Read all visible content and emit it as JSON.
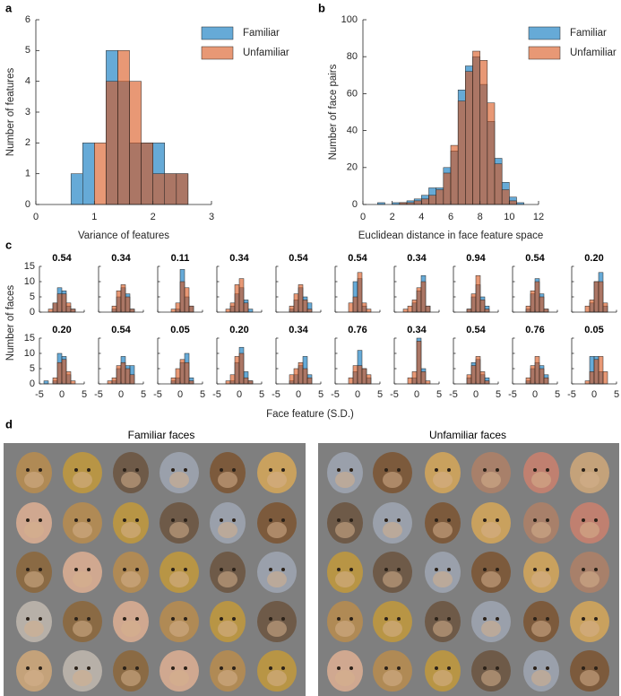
{
  "chart_data": [
    {
      "type": "histogram",
      "panel": "a",
      "x_label": "Variance of features",
      "y_label": "Number of features",
      "bins": [
        0.6,
        0.8,
        1.0,
        1.2,
        1.4,
        1.6,
        1.8,
        2.0,
        2.2,
        2.4,
        2.6
      ],
      "series": [
        {
          "name": "Familiar",
          "color": "#0072bd",
          "values": [
            1,
            2,
            0,
            5,
            4,
            2,
            2,
            2,
            1,
            1
          ]
        },
        {
          "name": "Unfamiliar",
          "color": "#d95319",
          "values": [
            0,
            0,
            2,
            4,
            5,
            4,
            2,
            1,
            1,
            1
          ]
        }
      ],
      "xlim": [
        0,
        3
      ],
      "xticks": [
        0,
        1,
        2,
        3
      ],
      "ylim": [
        0,
        6
      ],
      "yticks": [
        0,
        1,
        2,
        3,
        4,
        5,
        6
      ],
      "legend": "upper right"
    },
    {
      "type": "histogram",
      "panel": "b",
      "x_label": "Euclidean distance in face feature space",
      "y_label": "Number of face pairs",
      "bins": [
        1.0,
        1.5,
        2.0,
        2.5,
        3.0,
        3.5,
        4.0,
        4.5,
        5.0,
        5.5,
        6.0,
        6.5,
        7.0,
        7.5,
        8.0,
        8.5,
        9.0,
        9.5,
        10.0,
        10.5,
        11.0
      ],
      "series": [
        {
          "name": "Familiar",
          "color": "#0072bd",
          "values": [
            1,
            0,
            1,
            1,
            2,
            3,
            5,
            9,
            9,
            20,
            29,
            62,
            75,
            80,
            65,
            45,
            25,
            12,
            4,
            1
          ]
        },
        {
          "name": "Unfamiliar",
          "color": "#d95319",
          "values": [
            0,
            0,
            0,
            1,
            1,
            2,
            3,
            5,
            8,
            17,
            32,
            56,
            72,
            83,
            78,
            55,
            22,
            8,
            2,
            0
          ]
        }
      ],
      "xlim": [
        0,
        12
      ],
      "xticks": [
        0,
        2,
        4,
        6,
        8,
        10,
        12
      ],
      "ylim": [
        0,
        100
      ],
      "yticks": [
        0,
        20,
        40,
        60,
        80,
        100
      ],
      "legend": "upper right"
    },
    {
      "type": "histogram-grid",
      "panel": "c",
      "x_label": "Face feature (S.D.)",
      "y_label": "Number of faces",
      "columns": 10,
      "bins": [
        -4,
        -3,
        -2,
        -1,
        0,
        1,
        2,
        3,
        4
      ],
      "xlim": [
        -5,
        5
      ],
      "xticks": [
        -5,
        0,
        5
      ],
      "ylim": [
        0,
        15
      ],
      "yticks": [
        0,
        5,
        10,
        15
      ],
      "charts": [
        {
          "title": "0.54",
          "series": [
            {
              "color": "#0072bd",
              "values": [
                0,
                0,
                3,
                8,
                7,
                2,
                1,
                0
              ]
            },
            {
              "color": "#d95319",
              "values": [
                0,
                1,
                3,
                6,
                6,
                3,
                1,
                0
              ]
            }
          ]
        },
        {
          "title": "0.34",
          "series": [
            {
              "color": "#0072bd",
              "values": [
                0,
                0,
                1,
                5,
                8,
                6,
                1,
                0
              ]
            },
            {
              "color": "#d95319",
              "values": [
                0,
                0,
                2,
                7,
                9,
                5,
                1,
                0
              ]
            }
          ]
        },
        {
          "title": "0.11",
          "series": [
            {
              "color": "#0072bd",
              "values": [
                0,
                0,
                0,
                1,
                14,
                5,
                2,
                0
              ]
            },
            {
              "color": "#d95319",
              "values": [
                0,
                0,
                1,
                3,
                10,
                8,
                2,
                0
              ]
            }
          ]
        },
        {
          "title": "0.34",
          "series": [
            {
              "color": "#0072bd",
              "values": [
                0,
                0,
                2,
                6,
                8,
                4,
                1,
                0
              ]
            },
            {
              "color": "#d95319",
              "values": [
                0,
                1,
                3,
                9,
                11,
                3,
                0,
                0
              ]
            }
          ]
        },
        {
          "title": "0.54",
          "series": [
            {
              "color": "#0072bd",
              "values": [
                0,
                0,
                1,
                4,
                8,
                5,
                3,
                0
              ]
            },
            {
              "color": "#d95319",
              "values": [
                0,
                0,
                2,
                6,
                9,
                4,
                1,
                0
              ]
            }
          ]
        },
        {
          "title": "0.54",
          "series": [
            {
              "color": "#0072bd",
              "values": [
                0,
                0,
                0,
                10,
                11,
                2,
                0,
                0
              ]
            },
            {
              "color": "#d95319",
              "values": [
                0,
                0,
                3,
                5,
                13,
                3,
                1,
                0
              ]
            }
          ]
        },
        {
          "title": "0.34",
          "series": [
            {
              "color": "#0072bd",
              "values": [
                0,
                0,
                0,
                3,
                7,
                12,
                2,
                0
              ]
            },
            {
              "color": "#d95319",
              "values": [
                0,
                1,
                2,
                4,
                8,
                10,
                2,
                0
              ]
            }
          ]
        },
        {
          "title": "0.94",
          "series": [
            {
              "color": "#0072bd",
              "values": [
                0,
                0,
                1,
                5,
                9,
                5,
                2,
                0
              ]
            },
            {
              "color": "#d95319",
              "values": [
                0,
                0,
                1,
                6,
                12,
                4,
                1,
                0
              ]
            }
          ]
        },
        {
          "title": "0.54",
          "series": [
            {
              "color": "#0072bd",
              "values": [
                0,
                0,
                1,
                6,
                11,
                6,
                1,
                0
              ]
            },
            {
              "color": "#d95319",
              "values": [
                0,
                0,
                2,
                7,
                10,
                5,
                1,
                0
              ]
            }
          ]
        },
        {
          "title": "0.20",
          "series": [
            {
              "color": "#0072bd",
              "values": [
                0,
                0,
                0,
                3,
                10,
                13,
                2,
                0
              ]
            },
            {
              "color": "#d95319",
              "values": [
                0,
                0,
                2,
                4,
                10,
                10,
                3,
                0
              ]
            }
          ]
        },
        {
          "title": "0.20",
          "series": [
            {
              "color": "#0072bd",
              "values": [
                1,
                0,
                1,
                10,
                9,
                3,
                0,
                0
              ]
            },
            {
              "color": "#d95319",
              "values": [
                0,
                0,
                2,
                7,
                8,
                4,
                1,
                0
              ]
            }
          ]
        },
        {
          "title": "0.54",
          "series": [
            {
              "color": "#0072bd",
              "values": [
                0,
                0,
                1,
                5,
                9,
                6,
                6,
                0
              ]
            },
            {
              "color": "#d95319",
              "values": [
                0,
                1,
                2,
                6,
                7,
                5,
                3,
                0
              ]
            }
          ]
        },
        {
          "title": "0.05",
          "series": [
            {
              "color": "#0072bd",
              "values": [
                0,
                0,
                1,
                2,
                7,
                10,
                2,
                0
              ]
            },
            {
              "color": "#d95319",
              "values": [
                0,
                0,
                2,
                5,
                8,
                7,
                1,
                0
              ]
            }
          ]
        },
        {
          "title": "0.20",
          "series": [
            {
              "color": "#0072bd",
              "values": [
                0,
                0,
                1,
                7,
                12,
                4,
                1,
                0
              ]
            },
            {
              "color": "#d95319",
              "values": [
                0,
                1,
                3,
                9,
                10,
                2,
                1,
                0
              ]
            }
          ]
        },
        {
          "title": "0.34",
          "series": [
            {
              "color": "#0072bd",
              "values": [
                0,
                0,
                1,
                3,
                6,
                9,
                3,
                0
              ]
            },
            {
              "color": "#d95319",
              "values": [
                0,
                0,
                3,
                5,
                7,
                5,
                2,
                0
              ]
            }
          ]
        },
        {
          "title": "0.76",
          "series": [
            {
              "color": "#0072bd",
              "values": [
                0,
                0,
                0,
                4,
                11,
                5,
                2,
                0
              ]
            },
            {
              "color": "#d95319",
              "values": [
                0,
                0,
                2,
                6,
                6,
                5,
                3,
                0
              ]
            }
          ]
        },
        {
          "title": "0.34",
          "series": [
            {
              "color": "#0072bd",
              "values": [
                0,
                0,
                0,
                2,
                15,
                5,
                0,
                0
              ]
            },
            {
              "color": "#d95319",
              "values": [
                0,
                0,
                2,
                4,
                14,
                4,
                1,
                0
              ]
            }
          ]
        },
        {
          "title": "0.54",
          "series": [
            {
              "color": "#0072bd",
              "values": [
                0,
                0,
                2,
                7,
                8,
                3,
                2,
                0
              ]
            },
            {
              "color": "#d95319",
              "values": [
                0,
                0,
                3,
                6,
                9,
                4,
                1,
                0
              ]
            }
          ]
        },
        {
          "title": "0.76",
          "series": [
            {
              "color": "#0072bd",
              "values": [
                0,
                0,
                1,
                5,
                7,
                6,
                3,
                0
              ]
            },
            {
              "color": "#d95319",
              "values": [
                0,
                0,
                2,
                6,
                9,
                5,
                2,
                0
              ]
            }
          ]
        },
        {
          "title": "0.05",
          "series": [
            {
              "color": "#0072bd",
              "values": [
                0,
                0,
                0,
                9,
                9,
                4,
                0,
                0
              ]
            },
            {
              "color": "#d95319",
              "values": [
                0,
                0,
                1,
                4,
                8,
                9,
                4,
                0
              ]
            }
          ]
        }
      ]
    }
  ],
  "panel_d": {
    "label": "d",
    "groups": [
      "Familiar faces",
      "Unfamiliar faces"
    ]
  }
}
